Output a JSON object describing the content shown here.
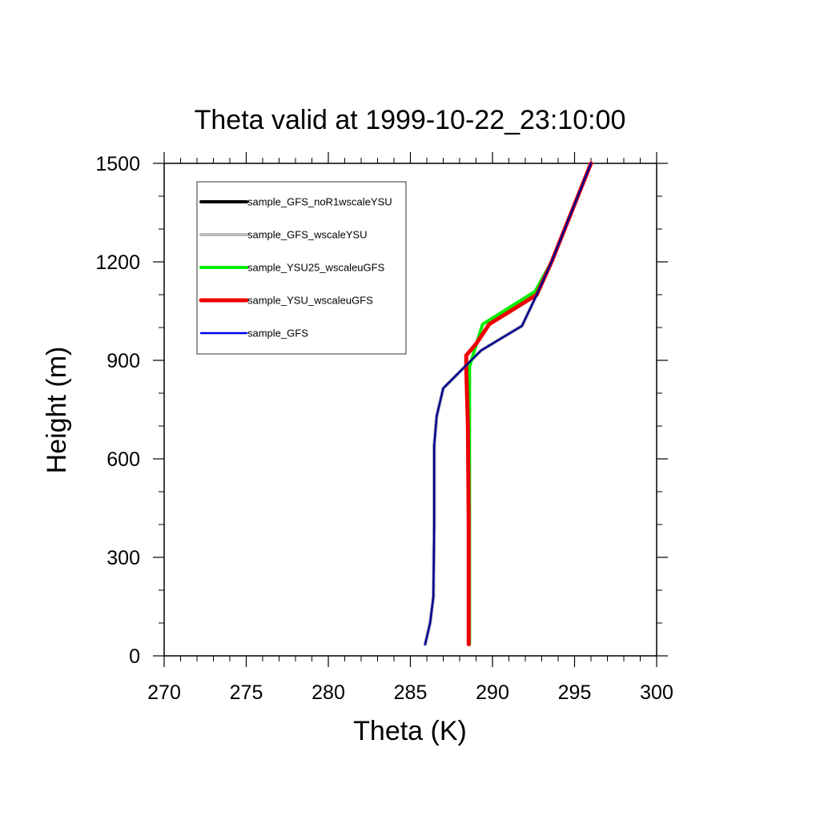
{
  "chart_data": {
    "type": "line",
    "title": "Theta valid at 1999-10-22_23:10:00",
    "xlabel": "Theta (K)",
    "ylabel": "Height (m)",
    "xlim": [
      270,
      300
    ],
    "ylim": [
      0,
      1500
    ],
    "xticks": [
      "270",
      "275",
      "280",
      "285",
      "290",
      "295",
      "300"
    ],
    "yticks": [
      "0",
      "300",
      "600",
      "900",
      "1200",
      "1500"
    ],
    "grid": false,
    "legend_position": "top-left",
    "series": [
      {
        "name": "sample_GFS_noR1wscaleYSU",
        "color": "#000000",
        "points": [
          [
            285.9,
            35
          ],
          [
            286.2,
            100
          ],
          [
            286.4,
            180
          ],
          [
            286.45,
            400
          ],
          [
            286.45,
            640
          ],
          [
            286.6,
            730
          ],
          [
            287.0,
            815
          ],
          [
            288.5,
            890
          ],
          [
            289.3,
            930
          ],
          [
            291.8,
            1005
          ],
          [
            292.7,
            1100
          ],
          [
            293.6,
            1200
          ],
          [
            296.0,
            1500
          ]
        ]
      },
      {
        "name": "sample_GFS_wscaleYSU",
        "color": "#bbbbbb",
        "points": [
          [
            285.9,
            35
          ],
          [
            286.2,
            100
          ],
          [
            286.4,
            180
          ],
          [
            286.45,
            400
          ],
          [
            286.45,
            640
          ],
          [
            286.6,
            730
          ],
          [
            287.0,
            815
          ],
          [
            288.5,
            890
          ],
          [
            289.3,
            930
          ],
          [
            291.8,
            1005
          ],
          [
            292.7,
            1100
          ],
          [
            293.6,
            1200
          ],
          [
            296.0,
            1500
          ]
        ]
      },
      {
        "name": "sample_YSU25_wscaleuGFS",
        "color": "#00ee00",
        "points": [
          [
            288.6,
            35
          ],
          [
            288.6,
            400
          ],
          [
            288.6,
            700
          ],
          [
            288.6,
            880
          ],
          [
            288.9,
            930
          ],
          [
            289.4,
            1010
          ],
          [
            292.6,
            1110
          ],
          [
            293.6,
            1200
          ],
          [
            296.0,
            1500
          ]
        ]
      },
      {
        "name": "sample_YSU_wscaleuGFS",
        "color": "#ee0000",
        "points": [
          [
            288.55,
            35
          ],
          [
            288.55,
            400
          ],
          [
            288.5,
            700
          ],
          [
            288.4,
            880
          ],
          [
            288.4,
            915
          ],
          [
            289.0,
            950
          ],
          [
            289.8,
            1010
          ],
          [
            292.7,
            1100
          ],
          [
            293.6,
            1200
          ],
          [
            296.0,
            1500
          ]
        ]
      },
      {
        "name": "sample_GFS",
        "color": "#0000ee",
        "points": [
          [
            285.9,
            35
          ],
          [
            286.2,
            100
          ],
          [
            286.4,
            180
          ],
          [
            286.45,
            400
          ],
          [
            286.45,
            640
          ],
          [
            286.6,
            730
          ],
          [
            287.0,
            815
          ],
          [
            288.5,
            890
          ],
          [
            289.3,
            930
          ],
          [
            291.8,
            1005
          ],
          [
            292.7,
            1100
          ],
          [
            293.6,
            1200
          ],
          [
            296.0,
            1500
          ]
        ]
      }
    ]
  }
}
